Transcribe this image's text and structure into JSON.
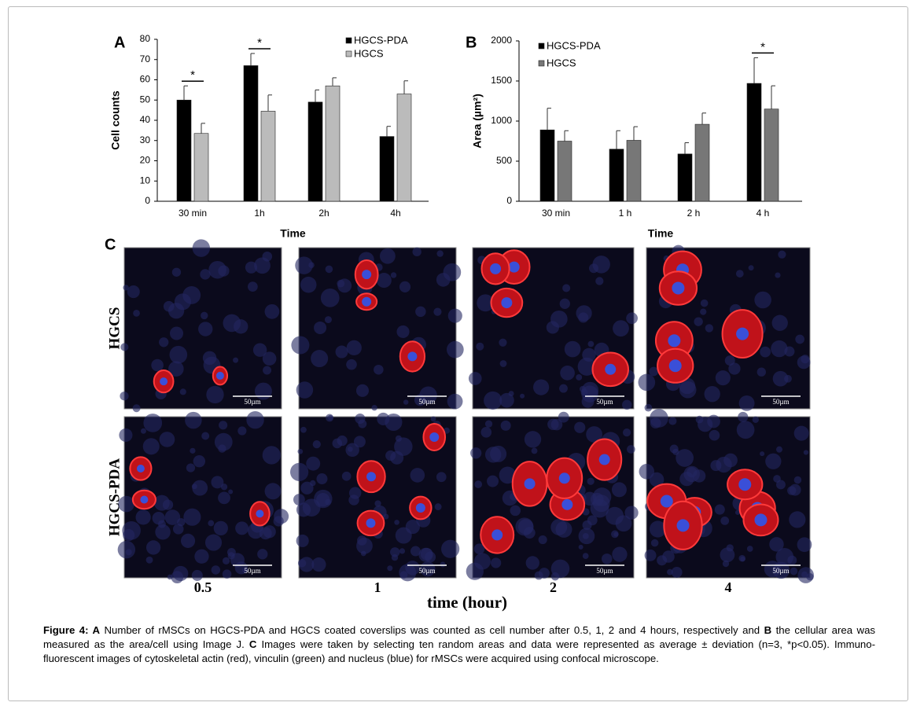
{
  "chart_data": [
    {
      "type": "bar",
      "panel": "A",
      "x_label": "Time",
      "y_label": "Cell counts",
      "categories": [
        "30 min",
        "1h",
        "2h",
        "4h"
      ],
      "series": [
        {
          "name": "HGCS-PDA",
          "color": "#000000",
          "values": [
            50,
            67,
            49,
            32
          ],
          "errors": [
            7,
            6,
            6,
            5
          ]
        },
        {
          "name": "HGCS",
          "color": "#bbbbbb",
          "values": [
            33.5,
            44.5,
            57,
            53
          ],
          "errors": [
            5,
            8,
            4,
            6.5
          ]
        }
      ],
      "annotations": [
        "*",
        "*",
        null,
        null
      ],
      "ylim": [
        0,
        80
      ],
      "yticks": [
        0,
        10,
        20,
        30,
        40,
        50,
        60,
        70,
        80
      ]
    },
    {
      "type": "bar",
      "panel": "B",
      "x_label": "Time",
      "y_label": "Area (µm²)",
      "categories": [
        "30 min",
        "1 h",
        "2 h",
        "4 h"
      ],
      "series": [
        {
          "name": "HGCS-PDA",
          "color": "#000000",
          "values": [
            890,
            650,
            590,
            1470
          ],
          "errors": [
            270,
            230,
            140,
            320
          ]
        },
        {
          "name": "HGCS",
          "color": "#777777",
          "values": [
            750,
            760,
            960,
            1150
          ],
          "errors": [
            130,
            170,
            140,
            290
          ]
        }
      ],
      "annotations": [
        null,
        null,
        null,
        "*"
      ],
      "ylim": [
        0,
        2000
      ],
      "yticks": [
        0,
        500,
        1000,
        1500,
        2000
      ]
    }
  ],
  "panel_c": {
    "panel": "C",
    "rows": [
      "HGCS",
      "HGCS-PDA"
    ],
    "columns": [
      "0.5",
      "1",
      "2",
      "4"
    ],
    "x_label": "time (hour)",
    "scale_bar": "50µm"
  },
  "caption": [
    "Figure 4:",
    " A",
    " Number of rMSCs on HGCS-PDA and HGCS coated coverslips was counted as cell number after 0.5, 1, 2 and 4 hours, respectively and ",
    "B",
    " the cellular area was measured as the area/cell using Image J. ",
    "C",
    " Images were taken by selecting ten random areas and data were represented as average ± deviation (n=3, *p<0.05). Immuno-fluorescent images of cytoskeletal actin (red), vinculin (green) and nucleus (blue) for rMSCs were acquired using confocal microscope."
  ]
}
